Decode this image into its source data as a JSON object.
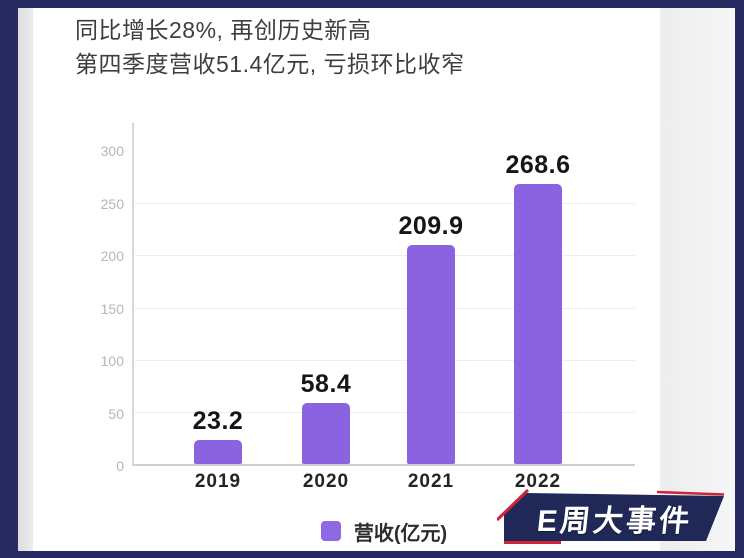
{
  "header": {
    "line1": "同比增长28%, 再创历史新高",
    "line2": "第四季度营收51.4亿元, 亏损环比收窄"
  },
  "chart_data": {
    "type": "bar",
    "categories": [
      "2019",
      "2020",
      "2021",
      "2022"
    ],
    "values": [
      23.2,
      58.4,
      209.9,
      268.6
    ],
    "value_labels": [
      "23.2",
      "58.4",
      "209.9",
      "268.6"
    ],
    "yticks": [
      "300",
      "250",
      "200",
      "150",
      "100",
      "50",
      "0"
    ],
    "ylim": [
      0,
      300
    ],
    "grid": "faint horizontal gridlines at 50-250",
    "legend_position": "bottom-center",
    "legend_label": "营收(亿元)",
    "bar_color": "#8a63e0",
    "title": "",
    "xlabel": "",
    "ylabel": ""
  },
  "legend": {
    "label": "营收(亿元)",
    "swatch_color": "#8f68e3"
  },
  "watermark": {
    "text": "E周大事件",
    "background_color": "#1f2857",
    "accent_color": "#cf2438"
  },
  "colors": {
    "frame_navy": "#272b62",
    "bar_purple": "#8a63e0",
    "headline_text": "#3e3e3e",
    "tick_text": "#b5b5c0",
    "value_text": "#161616"
  }
}
